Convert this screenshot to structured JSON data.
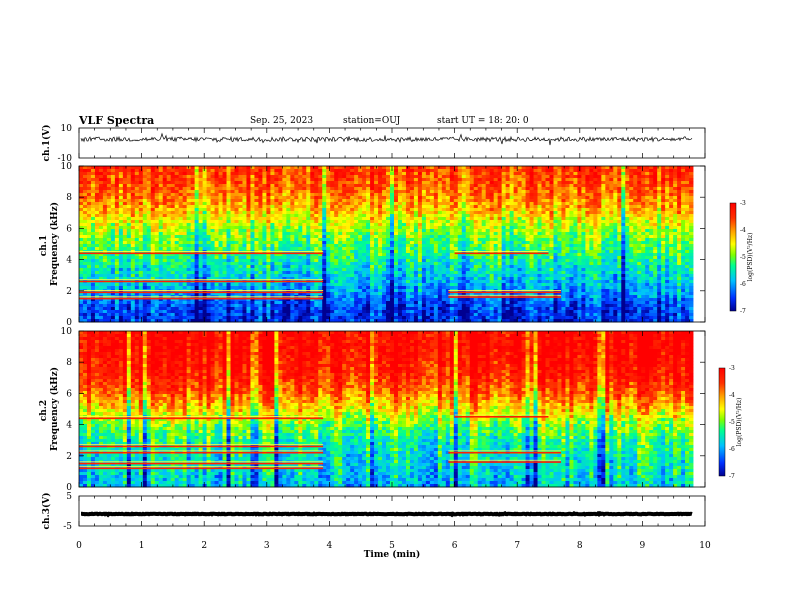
{
  "header": {
    "title": "VLF Spectra",
    "date": "Sep. 25, 2023",
    "station": "station=OUJ",
    "start": "start  UT =   18: 20: 0"
  },
  "chart_data": [
    {
      "type": "line",
      "id": "ch1-waveform",
      "ylabel": "ch.1(V)",
      "ylim": [
        -10,
        10
      ],
      "y_ticks": [
        "10",
        "-10"
      ],
      "x_range_min": [
        0,
        10
      ],
      "trace_active_until_min": 9.8,
      "baseline_v": 2.5,
      "typical_amplitude_v": 1.5
    },
    {
      "type": "heatmap",
      "id": "ch1-spectrogram",
      "ylabel": "ch.1\nFrequency (kHz)",
      "ylim": [
        0,
        10
      ],
      "y_ticks": [
        "0",
        "2",
        "4",
        "6",
        "8",
        "10"
      ],
      "colorbar": {
        "label": "log(PSD)(V²/Hz)",
        "range": [
          -7,
          -3
        ],
        "ticks": [
          "-3",
          "-4",
          "-5",
          "-6",
          "-7"
        ],
        "colors": [
          "#000090",
          "#0030ff",
          "#00c0ff",
          "#00ff90",
          "#80ff00",
          "#ffff00",
          "#ffa000",
          "#ff3000",
          "#ff0000"
        ]
      },
      "level_profile": [
        {
          "f": 0,
          "v": -6.6
        },
        {
          "f": 1,
          "v": -6.5
        },
        {
          "f": 2,
          "v": -6.0
        },
        {
          "f": 3,
          "v": -5.7
        },
        {
          "f": 4,
          "v": -5.4
        },
        {
          "f": 5,
          "v": -5.1
        },
        {
          "f": 6,
          "v": -4.8
        },
        {
          "f": 7,
          "v": -4.3
        },
        {
          "f": 8,
          "v": -3.9
        },
        {
          "f": 9,
          "v": -3.6
        },
        {
          "f": 10,
          "v": -3.5
        }
      ],
      "tone_bands": [
        {
          "f_khz": 1.5,
          "t_start_min": 0,
          "t_end_min": 3.9
        },
        {
          "f_khz": 1.9,
          "t_start_min": 0,
          "t_end_min": 3.9
        },
        {
          "f_khz": 2.6,
          "t_start_min": 0,
          "t_end_min": 3.9
        },
        {
          "f_khz": 4.4,
          "t_start_min": 0,
          "t_end_min": 3.9
        },
        {
          "f_khz": 1.6,
          "t_start_min": 5.9,
          "t_end_min": 7.7
        },
        {
          "f_khz": 1.9,
          "t_start_min": 5.9,
          "t_end_min": 7.7
        },
        {
          "f_khz": 4.4,
          "t_start_min": 6.0,
          "t_end_min": 7.5
        }
      ],
      "data_until_min": 9.8
    },
    {
      "type": "heatmap",
      "id": "ch2-spectrogram",
      "ylabel": "ch.2\nFrequency (kHz)",
      "ylim": [
        0,
        10
      ],
      "y_ticks": [
        "0",
        "2",
        "4",
        "6",
        "8",
        "10"
      ],
      "colorbar": {
        "label": "log(PSD)(V²/Hz)",
        "range": [
          -7,
          -3
        ],
        "ticks": [
          "-3",
          "-4",
          "-5",
          "-6",
          "-7"
        ],
        "colors": [
          "#000090",
          "#0030ff",
          "#00c0ff",
          "#00ff90",
          "#80ff00",
          "#ffff00",
          "#ffa000",
          "#ff3000",
          "#ff0000"
        ]
      },
      "level_profile": [
        {
          "f": 0,
          "v": -5.8
        },
        {
          "f": 1,
          "v": -5.6
        },
        {
          "f": 2,
          "v": -5.5
        },
        {
          "f": 3,
          "v": -5.3
        },
        {
          "f": 4,
          "v": -4.9
        },
        {
          "f": 5,
          "v": -4.3
        },
        {
          "f": 6,
          "v": -3.7
        },
        {
          "f": 7,
          "v": -3.3
        },
        {
          "f": 8,
          "v": -3.1
        },
        {
          "f": 9,
          "v": -3.0
        },
        {
          "f": 10,
          "v": -3.0
        }
      ],
      "tone_bands": [
        {
          "f_khz": 1.2,
          "t_start_min": 0,
          "t_end_min": 3.9
        },
        {
          "f_khz": 1.5,
          "t_start_min": 0,
          "t_end_min": 3.9
        },
        {
          "f_khz": 2.2,
          "t_start_min": 0,
          "t_end_min": 3.9
        },
        {
          "f_khz": 2.6,
          "t_start_min": 0,
          "t_end_min": 3.9
        },
        {
          "f_khz": 4.4,
          "t_start_min": 0,
          "t_end_min": 3.9
        },
        {
          "f_khz": 1.6,
          "t_start_min": 5.9,
          "t_end_min": 7.7
        },
        {
          "f_khz": 2.2,
          "t_start_min": 5.9,
          "t_end_min": 7.7
        },
        {
          "f_khz": 4.5,
          "t_start_min": 6.0,
          "t_end_min": 7.5
        }
      ],
      "data_until_min": 9.8
    },
    {
      "type": "line",
      "id": "ch3-waveform",
      "ylabel": "ch.3(V)",
      "ylim": [
        -5,
        5
      ],
      "y_ticks": [
        "5",
        "-5"
      ],
      "x_range_min": [
        0,
        10
      ],
      "trace_active_until_min": 9.8,
      "baseline_v": -1,
      "typical_amplitude_v": 0.1
    }
  ],
  "x_axis": {
    "label": "Time  (min)",
    "range": [
      0,
      10
    ],
    "ticks": [
      "0",
      "1",
      "2",
      "3",
      "4",
      "5",
      "6",
      "7",
      "8",
      "9",
      "10"
    ]
  }
}
